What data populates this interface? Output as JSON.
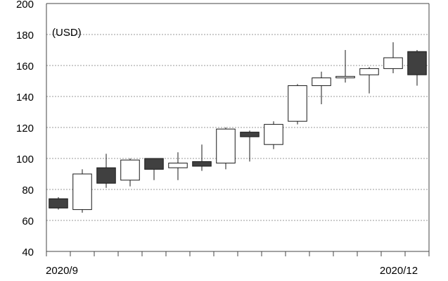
{
  "chart_data": {
    "type": "candlestick",
    "unit_label": "(USD)",
    "ylim": [
      40,
      200
    ],
    "yticks": [
      40,
      60,
      80,
      100,
      120,
      140,
      160,
      180,
      200
    ],
    "x_labels": {
      "start": "2020/9",
      "end": "2020/12"
    },
    "grid": true,
    "candles": [
      {
        "open": 74,
        "high": 75,
        "low": 67,
        "close": 68
      },
      {
        "open": 67,
        "high": 93,
        "low": 65,
        "close": 90
      },
      {
        "open": 94,
        "high": 103,
        "low": 81,
        "close": 84
      },
      {
        "open": 86,
        "high": 100,
        "low": 82,
        "close": 99
      },
      {
        "open": 100,
        "high": 100,
        "low": 86,
        "close": 93
      },
      {
        "open": 94,
        "high": 104,
        "low": 86,
        "close": 97
      },
      {
        "open": 98,
        "high": 109,
        "low": 92,
        "close": 95
      },
      {
        "open": 97,
        "high": 120,
        "low": 93,
        "close": 119
      },
      {
        "open": 117,
        "high": 118,
        "low": 98,
        "close": 114
      },
      {
        "open": 109,
        "high": 124,
        "low": 106,
        "close": 122
      },
      {
        "open": 124,
        "high": 148,
        "low": 122,
        "close": 147
      },
      {
        "open": 147,
        "high": 156,
        "low": 135,
        "close": 152
      },
      {
        "open": 152,
        "high": 170,
        "low": 149,
        "close": 153
      },
      {
        "open": 154,
        "high": 159,
        "low": 142,
        "close": 158
      },
      {
        "open": 158,
        "high": 175,
        "low": 155,
        "close": 165
      },
      {
        "open": 169,
        "high": 170,
        "low": 147,
        "close": 154
      }
    ],
    "colors": {
      "up_fill": "#ffffff",
      "down_fill": "#404040",
      "outline": "#1a1a1a",
      "grid": "#999999",
      "axis": "#444444",
      "text": "#000000"
    }
  }
}
